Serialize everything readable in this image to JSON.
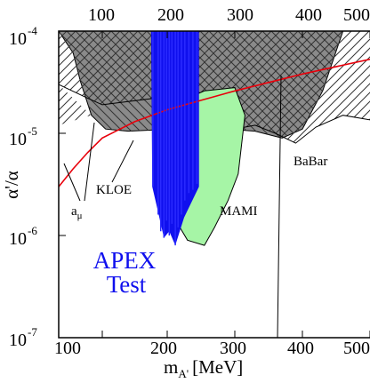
{
  "chart_data": {
    "type": "area",
    "title": "",
    "xlabel": {
      "main": "m",
      "sub": "A'",
      "unit": "[MeV]"
    },
    "ylabel": {
      "main": "α'/α"
    },
    "xlim": [
      40,
      550
    ],
    "ylim_log10": [
      -7,
      -4
    ],
    "x_scale": "linear",
    "y_scale": "log",
    "x_ticks": [
      100,
      200,
      300,
      400,
      500
    ],
    "x_tick_labels": [
      "100",
      "200",
      "300",
      "400",
      "500"
    ],
    "y_ticks": [
      -7,
      -6,
      -5,
      -4
    ],
    "y_tick_labels": [
      {
        "base": "10",
        "exp": "-7"
      },
      {
        "base": "10",
        "exp": "-6"
      },
      {
        "base": "10",
        "exp": "-5"
      },
      {
        "base": "10",
        "exp": "-4"
      }
    ],
    "labels": {
      "kloe": "KLOE",
      "mami": "MAMI",
      "babar": "BaBar",
      "amu_main": "a",
      "amu_sub": "μ"
    },
    "apex": {
      "line1": "APEX",
      "line2": "Test"
    },
    "colors": {
      "exclusion_gray": "#8a8a8a",
      "apex_blue": "#1010ee",
      "mami_green": "#a6f5a6",
      "amu_red": "#e8000b",
      "hatch": "#333333"
    },
    "series": [
      {
        "id": "gray",
        "points": [
          [
            40,
            0.0001
          ],
          [
            60,
            6.1e-05
          ],
          [
            70,
            3.2e-05
          ],
          [
            85,
            1.5e-05
          ],
          [
            105,
            1.1e-05
          ],
          [
            140,
            1.05e-05
          ],
          [
            180,
            1.08e-05
          ],
          [
            250,
            1.15e-05
          ],
          [
            330,
            1.05e-05
          ],
          [
            370,
            9e-06
          ],
          [
            400,
            1.1e-05
          ],
          [
            430,
            2.6e-05
          ],
          [
            460,
            0.0001
          ]
        ]
      },
      {
        "id": "babar",
        "points": [
          [
            40,
            3e-05
          ],
          [
            80,
            2.2e-05
          ],
          [
            100,
            1.9e-05
          ],
          [
            180,
            2.2e-05
          ],
          [
            280,
            2.4e-05
          ],
          [
            300,
            1.1e-05
          ],
          [
            330,
            1.2e-05
          ],
          [
            360,
            1e-05
          ],
          [
            390,
            8e-06
          ],
          [
            420,
            1.15e-05
          ],
          [
            460,
            1.5e-05
          ],
          [
            520,
            1.3e-05
          ],
          [
            550,
            1.2e-05
          ]
        ]
      },
      {
        "id": "mami",
        "points": [
          [
            190,
            2.5e-05
          ],
          [
            230,
            2.2e-05
          ],
          [
            255,
            2.6e-05
          ],
          [
            300,
            2.8e-05
          ],
          [
            315,
            1.5e-05
          ],
          [
            305,
            4e-06
          ],
          [
            290,
            2.2e-06
          ],
          [
            270,
            1.2e-06
          ],
          [
            255,
            8e-07
          ],
          [
            230,
            9e-07
          ],
          [
            210,
            1.5e-06
          ],
          [
            200,
            4e-06
          ]
        ]
      },
      {
        "id": "apex",
        "points": [
          [
            175,
            0.00012
          ],
          [
            247,
            0.00012
          ],
          [
            247,
            3e-06
          ],
          [
            225,
            1.5e-06
          ],
          [
            212,
            8e-07
          ],
          [
            203,
            1.1e-06
          ],
          [
            195,
            9.5e-07
          ],
          [
            185,
            1.8e-06
          ],
          [
            177,
            3e-06
          ]
        ]
      },
      {
        "id": "amu",
        "points": [
          [
            40,
            3e-06
          ],
          [
            60,
            4.5e-06
          ],
          [
            80,
            6.5e-06
          ],
          [
            100,
            9e-06
          ],
          [
            150,
            1.3e-05
          ],
          [
            200,
            1.7e-05
          ],
          [
            300,
            2.6e-05
          ],
          [
            400,
            3.8e-05
          ],
          [
            500,
            5.3e-05
          ],
          [
            550,
            6.2e-05
          ]
        ]
      }
    ]
  }
}
